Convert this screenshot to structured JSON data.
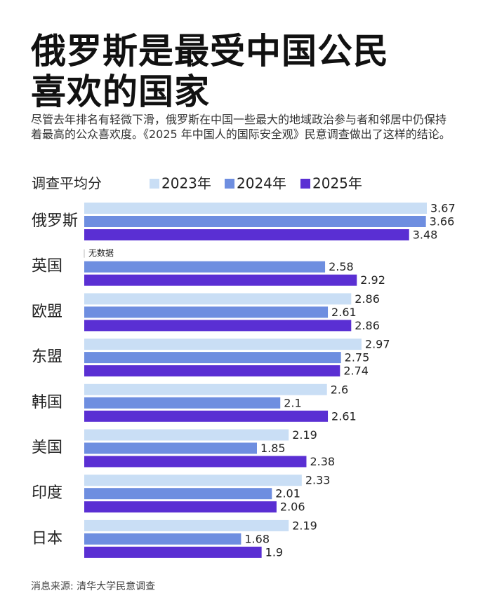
{
  "chart_data": {
    "type": "hbar",
    "title": "俄罗斯是最受中国公民喜欢的国家",
    "subtitle": "尽管去年排名有轻微下滑，俄罗斯在中国一些最大的地域政治参与者和邻居中仍保持着最高的公众喜欢度。《2025 年中国人的国际安全观》民意调查做出了这样的结论。",
    "axis_label": "调查平均分",
    "categories": [
      "俄罗斯",
      "英国",
      "欧盟",
      "东盟",
      "韩国",
      "美国",
      "印度",
      "日本"
    ],
    "series": [
      {
        "name": "2023年",
        "color": "#c9def5",
        "values": [
          3.67,
          null,
          2.86,
          2.97,
          2.6,
          2.19,
          2.33,
          2.19
        ]
      },
      {
        "name": "2024年",
        "color": "#6e8ee0",
        "values": [
          3.66,
          2.58,
          2.61,
          2.75,
          2.1,
          1.85,
          2.01,
          1.68
        ]
      },
      {
        "name": "2025年",
        "color": "#5a2fd3",
        "values": [
          3.48,
          2.92,
          2.86,
          2.74,
          2.61,
          2.38,
          2.06,
          1.9
        ]
      }
    ],
    "null_label": "无数据",
    "source": "消息来源: 清华大学民意调查"
  }
}
